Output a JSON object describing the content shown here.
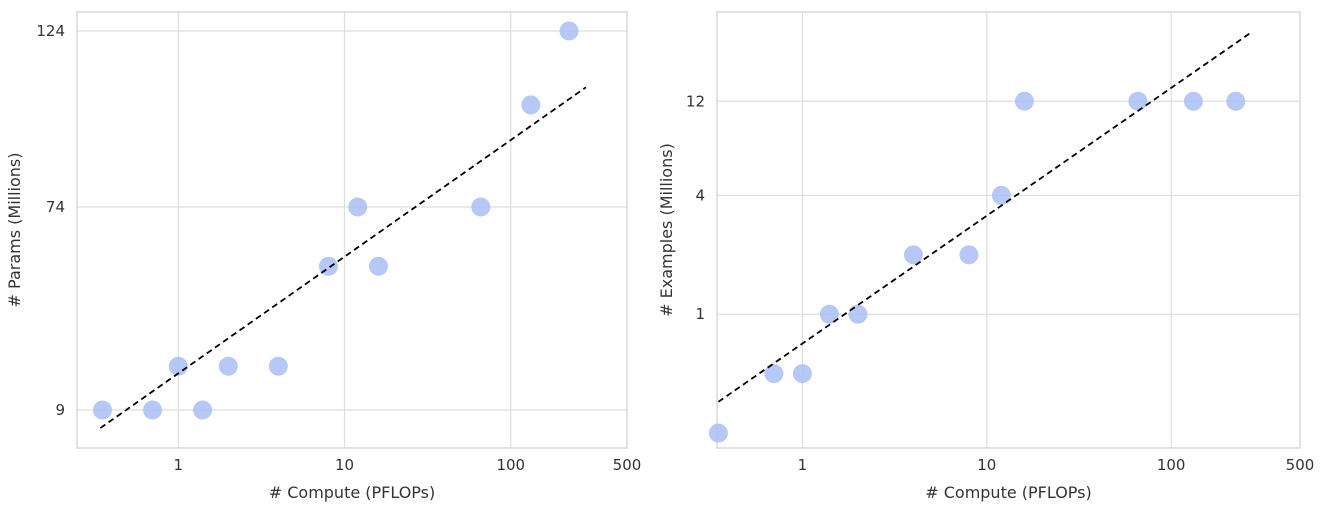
{
  "chart_data": [
    {
      "type": "scatter",
      "title": "",
      "xlabel": "# Compute (PFLOPs)",
      "ylabel": "# Params (Millions)",
      "x_scale": "log",
      "xlim": [
        0.246,
        500
      ],
      "xticks": [
        1,
        10,
        100,
        500
      ],
      "xtick_labels": [
        "1",
        "10",
        "100",
        "500"
      ],
      "y_scale": "custom (ticks unevenly spaced)",
      "ylim": [
        -3.2,
        129.4
      ],
      "yticks": [
        9,
        74,
        124
      ],
      "ytick_labels": [
        "9",
        "74",
        "124"
      ],
      "grid": true,
      "points": {
        "x": [
          0.35,
          0.7,
          1,
          1.4,
          2,
          4,
          8,
          12,
          16,
          66,
          132,
          224
        ],
        "y": [
          9,
          9,
          23,
          9,
          23,
          23,
          55,
          74,
          55,
          74,
          103,
          124
        ]
      },
      "fit_line": {
        "style": "dashed",
        "x": [
          0.34,
          283
        ],
        "y": [
          3.2,
          108
        ]
      },
      "point_color": "#a9c0f5",
      "line_color": "#000000"
    },
    {
      "type": "scatter",
      "title": "",
      "xlabel": "# Compute (PFLOPs)",
      "ylabel": "# Examples (Millions)",
      "x_scale": "log",
      "xlim": [
        0.344,
        500
      ],
      "xticks": [
        1,
        10,
        100,
        500
      ],
      "xtick_labels": [
        "1",
        "10",
        "100",
        "500"
      ],
      "y_scale": "log",
      "ylim": [
        0.21,
        34
      ],
      "yticks": [
        1,
        4,
        12
      ],
      "ytick_labels": [
        "1",
        "4",
        "12"
      ],
      "grid": true,
      "points": {
        "x": [
          0.35,
          0.7,
          1,
          1.4,
          2,
          4,
          8,
          12,
          16,
          66,
          132,
          224
        ],
        "y": [
          0.25,
          0.5,
          0.5,
          1,
          1,
          2,
          2,
          4,
          12,
          12,
          12,
          12
        ]
      },
      "fit_line": {
        "style": "dashed",
        "x": [
          0.35,
          275
        ],
        "y": [
          0.36,
          27
        ]
      },
      "point_color": "#a9c0f5",
      "line_color": "#000000"
    }
  ]
}
